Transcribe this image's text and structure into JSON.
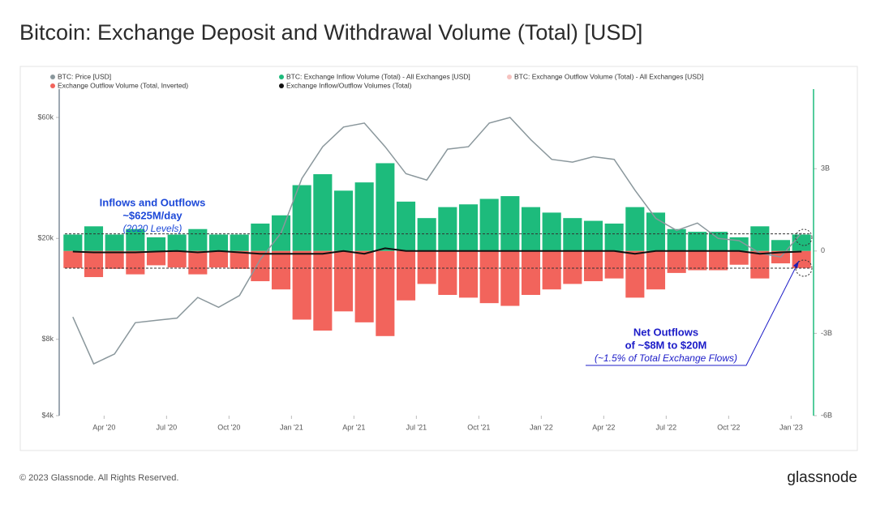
{
  "chart_data": {
    "type": "combo",
    "title": "Bitcoin: Exchange Deposit and Withdrawal Volume (Total) [USD]",
    "x": [
      "2020-02",
      "2020-03",
      "2020-04",
      "2020-05",
      "2020-06",
      "2020-07",
      "2020-08",
      "2020-09",
      "2020-10",
      "2020-11",
      "2020-12",
      "2021-01",
      "2021-02",
      "2021-03",
      "2021-04",
      "2021-05",
      "2021-06",
      "2021-07",
      "2021-08",
      "2021-09",
      "2021-10",
      "2021-11",
      "2021-12",
      "2022-01",
      "2022-02",
      "2022-03",
      "2022-04",
      "2022-05",
      "2022-06",
      "2022-07",
      "2022-08",
      "2022-09",
      "2022-10",
      "2022-11",
      "2022-12",
      "2023-01"
    ],
    "xlim": [
      "2020-02",
      "2023-02"
    ],
    "xticks": [
      {
        "value": "2020-04",
        "label": "Apr '20"
      },
      {
        "value": "2020-07",
        "label": "Jul '20"
      },
      {
        "value": "2020-10",
        "label": "Oct '20"
      },
      {
        "value": "2021-01",
        "label": "Jan '21"
      },
      {
        "value": "2021-04",
        "label": "Apr '21"
      },
      {
        "value": "2021-07",
        "label": "Jul '21"
      },
      {
        "value": "2021-10",
        "label": "Oct '21"
      },
      {
        "value": "2022-01",
        "label": "Jan '22"
      },
      {
        "value": "2022-04",
        "label": "Apr '22"
      },
      {
        "value": "2022-07",
        "label": "Jul '22"
      },
      {
        "value": "2022-10",
        "label": "Oct '22"
      },
      {
        "value": "2023-01",
        "label": "Jan '23"
      }
    ],
    "ylim": [
      4000,
      77600
    ],
    "y_log_scale": true,
    "yticks": [
      {
        "value": 4000,
        "label": "$4k"
      },
      {
        "value": 8000,
        "label": "$8k"
      },
      {
        "value": 20000,
        "label": "$20k"
      },
      {
        "value": 60000,
        "label": "$60k"
      }
    ],
    "y2lim": [
      -6000000000,
      5900000000
    ],
    "y2ticks": [
      {
        "value": -6000000000,
        "label": "-6B"
      },
      {
        "value": -3000000000,
        "label": "-3B"
      },
      {
        "value": 0,
        "label": "0"
      },
      {
        "value": 3000000000,
        "label": "3B"
      }
    ],
    "series": [
      {
        "name": "BTC: Price [USD]",
        "color": "#8a979c",
        "type": "line",
        "axis": "y",
        "values": [
          9800,
          6400,
          7000,
          9300,
          9500,
          9700,
          11700,
          10700,
          11900,
          16500,
          21000,
          34500,
          46000,
          55000,
          57000,
          46000,
          36000,
          34000,
          45000,
          46000,
          57000,
          60000,
          49000,
          41000,
          40000,
          42000,
          41000,
          31000,
          24000,
          21500,
          23000,
          20000,
          19600,
          17500,
          16900,
          21000
        ]
      },
      {
        "name": "BTC: Exchange Inflow Volume (Total) - All Exchanges [USD]",
        "color": "#1dbb7c",
        "type": "bar",
        "axis": "y2",
        "values": [
          600000000,
          900000000,
          600000000,
          800000000,
          500000000,
          600000000,
          800000000,
          600000000,
          600000000,
          1000000000,
          1300000000,
          2400000000,
          2800000000,
          2200000000,
          2500000000,
          3200000000,
          1800000000,
          1200000000,
          1600000000,
          1700000000,
          1900000000,
          2000000000,
          1600000000,
          1400000000,
          1200000000,
          1100000000,
          1000000000,
          1600000000,
          1400000000,
          800000000,
          700000000,
          700000000,
          500000000,
          900000000,
          400000000,
          600000000
        ]
      },
      {
        "name": "Exchange Outflow Volume (Total, Inverted)",
        "color": "#f2645c",
        "type": "bar",
        "axis": "y2",
        "values": [
          -620000000,
          -950000000,
          -650000000,
          -850000000,
          -520000000,
          -600000000,
          -850000000,
          -600000000,
          -650000000,
          -1100000000,
          -1400000000,
          -2500000000,
          -2900000000,
          -2200000000,
          -2600000000,
          -3100000000,
          -1800000000,
          -1200000000,
          -1600000000,
          -1700000000,
          -1900000000,
          -2000000000,
          -1600000000,
          -1400000000,
          -1200000000,
          -1100000000,
          -1000000000,
          -1700000000,
          -1400000000,
          -800000000,
          -700000000,
          -700000000,
          -500000000,
          -1000000000,
          -450000000,
          -620000000
        ]
      },
      {
        "name": "Exchange Inflow/Outflow Volumes (Total)",
        "color": "#111111",
        "type": "line",
        "axis": "y2",
        "values": [
          -20000000,
          -50000000,
          -50000000,
          -50000000,
          -20000000,
          0,
          -50000000,
          0,
          -50000000,
          -100000000,
          -100000000,
          -100000000,
          -100000000,
          0,
          -100000000,
          100000000,
          0,
          0,
          0,
          0,
          0,
          0,
          0,
          0,
          0,
          0,
          0,
          -100000000,
          0,
          0,
          0,
          0,
          0,
          -100000000,
          -50000000,
          -20000000
        ]
      }
    ],
    "hidden_series": [
      {
        "name": "BTC: Exchange Outflow Volume (Total) - All Exchanges [USD]",
        "color": "#f6c2bf"
      }
    ],
    "reference_lines": [
      625000000,
      -625000000
    ],
    "annotations": [
      "Inflows and Outflows",
      "~$625M/day",
      "(2020 Levels)",
      "Net Outflows",
      "of ~$8M to $20M",
      "(~1.5% of Total Exchange Flows)"
    ]
  },
  "footer": {
    "copyright": "© 2023 Glassnode. All Rights Reserved.",
    "brand": "glassnode"
  }
}
